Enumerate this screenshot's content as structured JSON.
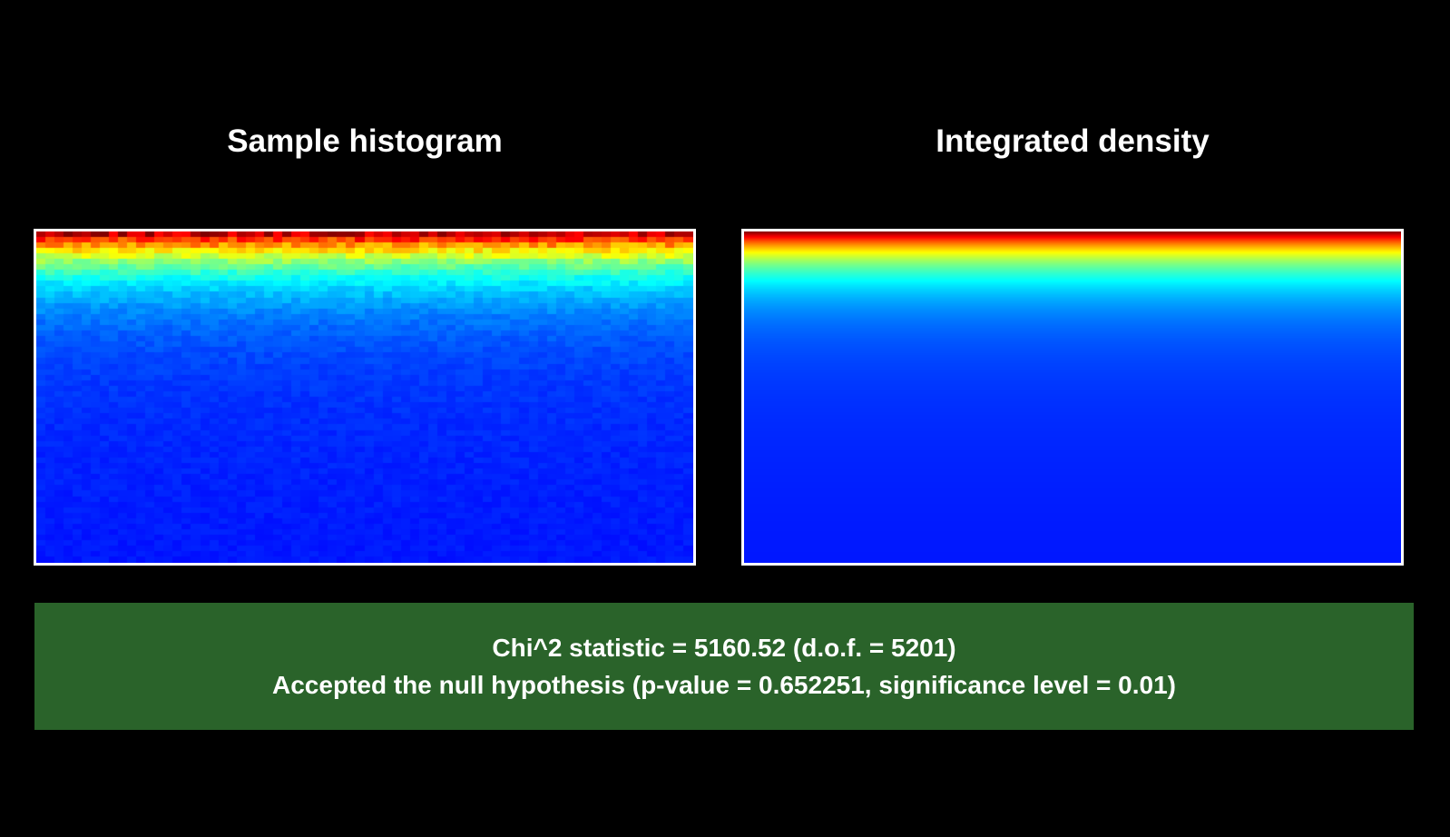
{
  "panels": {
    "left_title": "Sample histogram",
    "right_title": "Integrated density"
  },
  "result": {
    "statistic_line": "Chi^2 statistic = 5160.52 (d.o.f. = 5201)",
    "verdict_line": "Accepted the null hypothesis (p-value = 0.652251, significance level = 0.01)"
  },
  "colors": {
    "background": "#000000",
    "frame": "#ffffff",
    "result_box": "#2a632a",
    "colormap": [
      "#0010ff",
      "#0060ff",
      "#00a8ff",
      "#00ffe8",
      "#00ff40",
      "#e8ff00",
      "#ff2000"
    ]
  },
  "chart_data": [
    {
      "type": "heatmap",
      "title": "Sample histogram",
      "xlabel": "",
      "ylabel": "",
      "grid": false,
      "colormap": "jet",
      "noisy": true
    },
    {
      "type": "heatmap",
      "title": "Integrated density",
      "xlabel": "",
      "ylabel": "",
      "grid": false,
      "colormap": "jet",
      "noisy": false
    }
  ]
}
